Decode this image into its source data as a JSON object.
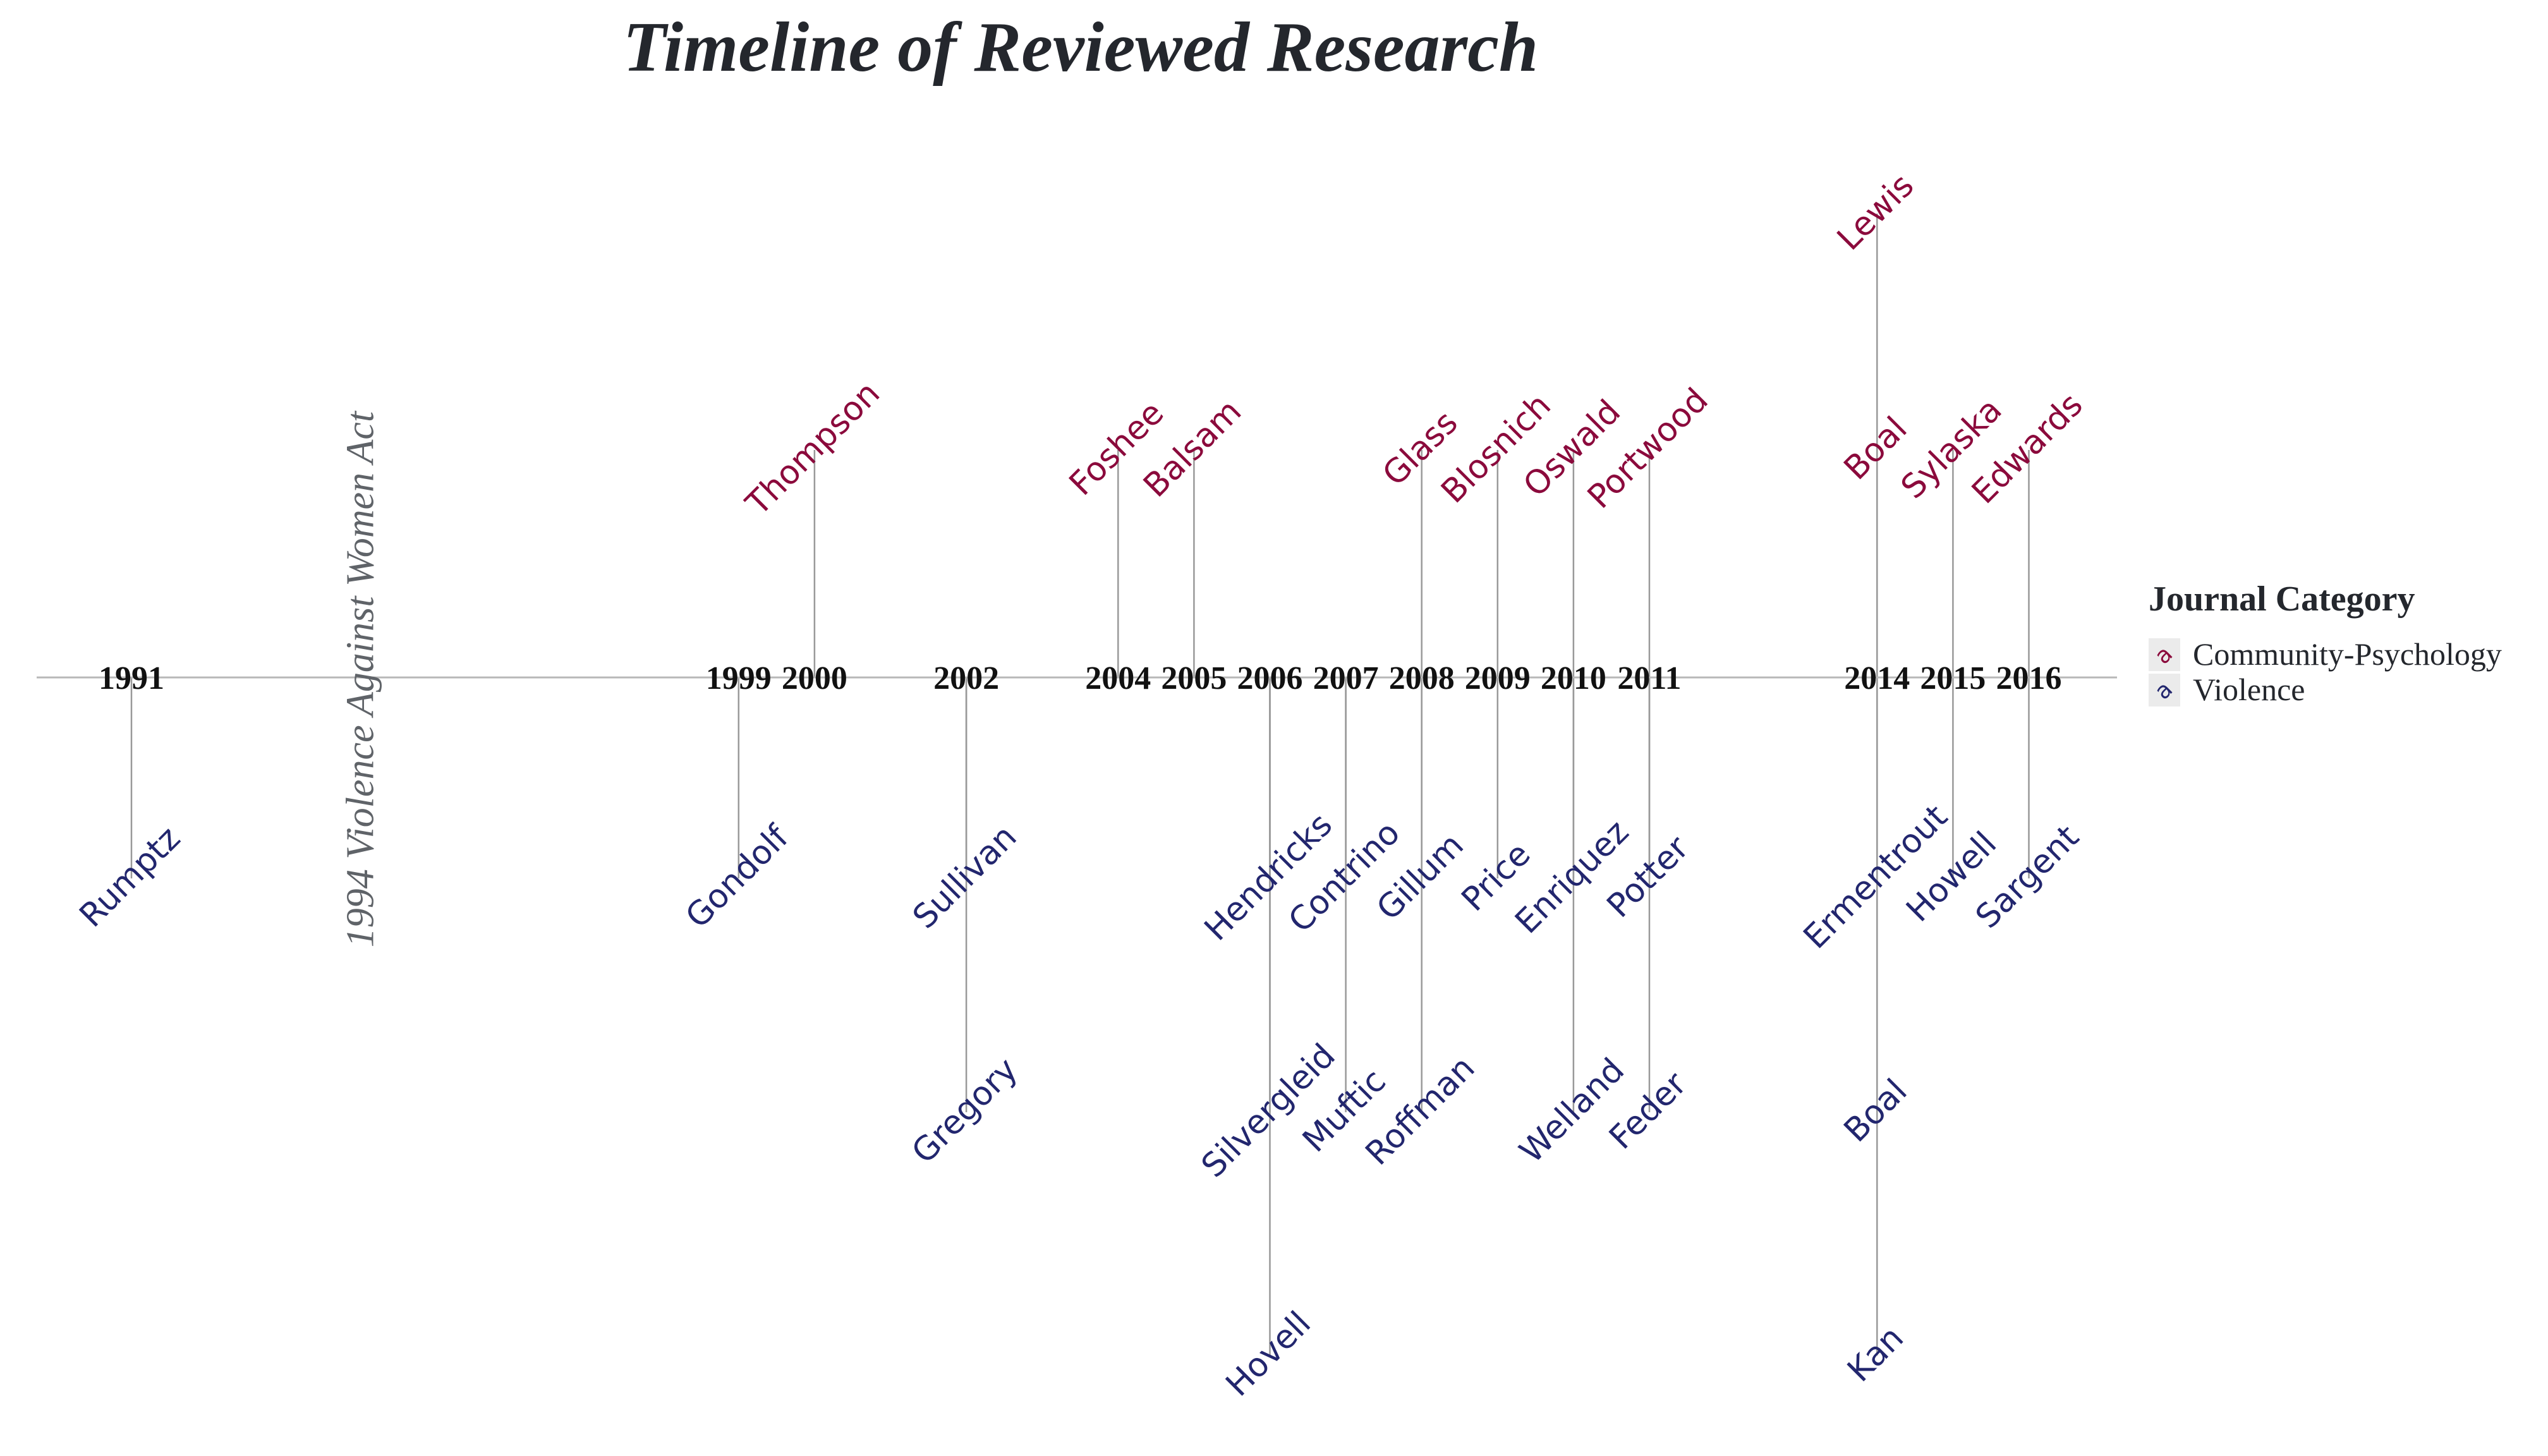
{
  "chart_data": {
    "type": "timeline",
    "title": "Timeline of Reviewed Research",
    "colors": {
      "Community-Psychology": "#8b0a3c",
      "Violence": "#22266e",
      "axis": "#b8b8b8",
      "stem": "#999999"
    },
    "years": [
      "1991",
      "1999",
      "2000",
      "2002",
      "2004",
      "2005",
      "2006",
      "2007",
      "2008",
      "2009",
      "2010",
      "2011",
      "2014",
      "2015",
      "2016"
    ],
    "event": {
      "year": 1994,
      "label": "1994 Violence Against Women Act"
    },
    "studies": [
      {
        "author": "Rumptz",
        "year": 1991,
        "category": "Violence",
        "level": -1
      },
      {
        "author": "Gondolf",
        "year": 1999,
        "category": "Violence",
        "level": -1
      },
      {
        "author": "Thompson",
        "year": 2000,
        "category": "Community-Psychology",
        "level": 1
      },
      {
        "author": "Sullivan",
        "year": 2002,
        "category": "Violence",
        "level": -1
      },
      {
        "author": "Gregory",
        "year": 2002,
        "category": "Violence",
        "level": -2
      },
      {
        "author": "Foshee",
        "year": 2004,
        "category": "Community-Psychology",
        "level": 1
      },
      {
        "author": "Balsam",
        "year": 2005,
        "category": "Community-Psychology",
        "level": 1
      },
      {
        "author": "Hendricks",
        "year": 2006,
        "category": "Violence",
        "level": -1
      },
      {
        "author": "Silvergleid",
        "year": 2006,
        "category": "Violence",
        "level": -2
      },
      {
        "author": "Hovell",
        "year": 2006,
        "category": "Violence",
        "level": -3
      },
      {
        "author": "Contrino",
        "year": 2007,
        "category": "Violence",
        "level": -1
      },
      {
        "author": "Muftic",
        "year": 2007,
        "category": "Violence",
        "level": -2
      },
      {
        "author": "Glass",
        "year": 2008,
        "category": "Community-Psychology",
        "level": 1
      },
      {
        "author": "Gillum",
        "year": 2008,
        "category": "Violence",
        "level": -1
      },
      {
        "author": "Roffman",
        "year": 2008,
        "category": "Violence",
        "level": -2
      },
      {
        "author": "Blosnich",
        "year": 2009,
        "category": "Community-Psychology",
        "level": 1
      },
      {
        "author": "Price",
        "year": 2009,
        "category": "Violence",
        "level": -1
      },
      {
        "author": "Oswald",
        "year": 2010,
        "category": "Community-Psychology",
        "level": 1
      },
      {
        "author": "Enriquez",
        "year": 2010,
        "category": "Violence",
        "level": -1
      },
      {
        "author": "Welland",
        "year": 2010,
        "category": "Violence",
        "level": -2
      },
      {
        "author": "Portwood",
        "year": 2011,
        "category": "Community-Psychology",
        "level": 1
      },
      {
        "author": "Potter",
        "year": 2011,
        "category": "Violence",
        "level": -1
      },
      {
        "author": "Feder",
        "year": 2011,
        "category": "Violence",
        "level": -2
      },
      {
        "author": "Boal",
        "year": 2014,
        "category": "Community-Psychology",
        "level": 1
      },
      {
        "author": "Lewis",
        "year": 2014,
        "category": "Community-Psychology",
        "level": 2
      },
      {
        "author": "Ermentrout",
        "year": 2014,
        "category": "Violence",
        "level": -1
      },
      {
        "author": "Boal",
        "year": 2014,
        "category": "Violence",
        "level": -2
      },
      {
        "author": "Kan",
        "year": 2014,
        "category": "Violence",
        "level": -3
      },
      {
        "author": "Sylaska",
        "year": 2015,
        "category": "Community-Psychology",
        "level": 1
      },
      {
        "author": "Howell",
        "year": 2015,
        "category": "Violence",
        "level": -1
      },
      {
        "author": "Edwards",
        "year": 2016,
        "category": "Community-Psychology",
        "level": 1
      },
      {
        "author": "Sargent",
        "year": 2016,
        "category": "Violence",
        "level": -1
      }
    ],
    "legend": {
      "title": "Journal Category",
      "placement": "right",
      "items": [
        {
          "label": "Community-Psychology",
          "glyph": "a",
          "category": "Community-Psychology"
        },
        {
          "label": "Violence",
          "glyph": "a",
          "category": "Violence"
        }
      ]
    },
    "grid": false
  }
}
